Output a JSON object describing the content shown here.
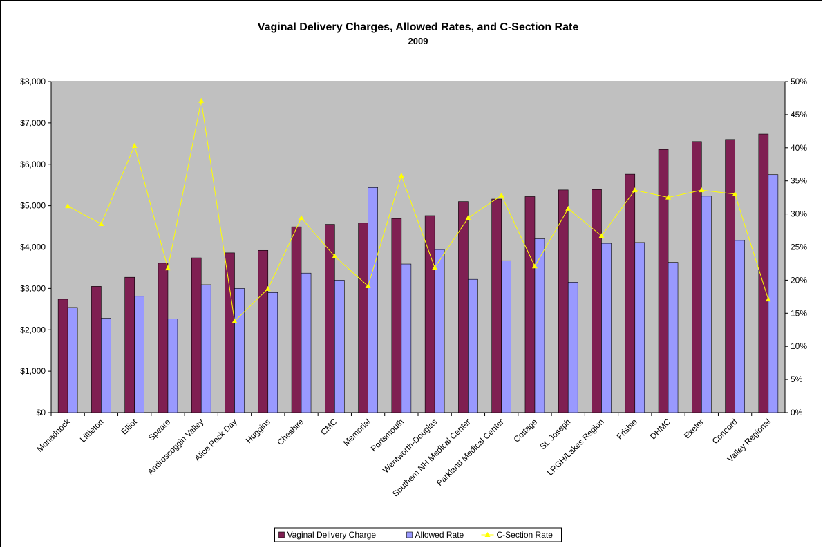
{
  "chart_data": {
    "type": "bar-line",
    "title": "Vaginal Delivery Charges, Allowed Rates, and C-Section Rate",
    "subtitle": "2009",
    "categories": [
      "Monadnock",
      "Littleton",
      "Elliot",
      "Speare",
      "Androscoggin Valley",
      "Alice Peck Day",
      "Huggins",
      "Cheshire",
      "CMC",
      "Memorial",
      "Portsmouth",
      "Wentworth-Douglas",
      "Southern NH Medical Center",
      "Parkland Medical Center",
      "Cottage",
      "St. Joseph",
      "LRGH/Lakes Region",
      "Frisbie",
      "DHMC",
      "Exeter",
      "Concord",
      "Valley Regional"
    ],
    "series": [
      {
        "name": "Vaginal Delivery Charge",
        "color": "#7f1f52",
        "type": "bar",
        "values": [
          2740,
          3050,
          3270,
          3610,
          3740,
          3860,
          3920,
          4490,
          4550,
          4580,
          4690,
          4760,
          5100,
          5160,
          5220,
          5380,
          5390,
          5760,
          6360,
          6550,
          6600,
          6730
        ]
      },
      {
        "name": "Allowed Rate",
        "color": "#9999ff",
        "type": "bar",
        "values": [
          2540,
          2280,
          2810,
          2260,
          3090,
          3000,
          2900,
          3370,
          3200,
          5440,
          3590,
          3940,
          3220,
          3670,
          4200,
          3150,
          4090,
          4110,
          3630,
          5230,
          4160,
          5750
        ]
      },
      {
        "name": "C-Section Rate",
        "color": "#ffff00",
        "type": "line",
        "axis": "y2",
        "values": [
          31.2,
          28.5,
          40.3,
          21.8,
          47.1,
          13.8,
          18.7,
          29.4,
          23.6,
          19.1,
          35.8,
          21.9,
          29.4,
          32.8,
          22.1,
          30.8,
          26.7,
          33.6,
          32.5,
          33.6,
          33.0,
          17.1
        ]
      }
    ],
    "ylim": [
      0,
      8000
    ],
    "yticks": [
      {
        "value": 0,
        "label": "$0"
      },
      {
        "value": 1000,
        "label": "$1,000"
      },
      {
        "value": 2000,
        "label": "$2,000"
      },
      {
        "value": 3000,
        "label": "$3,000"
      },
      {
        "value": 4000,
        "label": "$4,000"
      },
      {
        "value": 5000,
        "label": "$5,000"
      },
      {
        "value": 6000,
        "label": "$6,000"
      },
      {
        "value": 7000,
        "label": "$7,000"
      },
      {
        "value": 8000,
        "label": "$8,000"
      }
    ],
    "y2lim": [
      0,
      50
    ],
    "y2ticks": [
      {
        "value": 0,
        "label": "0%"
      },
      {
        "value": 5,
        "label": "5%"
      },
      {
        "value": 10,
        "label": "10%"
      },
      {
        "value": 15,
        "label": "15%"
      },
      {
        "value": 20,
        "label": "20%"
      },
      {
        "value": 25,
        "label": "25%"
      },
      {
        "value": 30,
        "label": "30%"
      },
      {
        "value": 35,
        "label": "35%"
      },
      {
        "value": 40,
        "label": "40%"
      },
      {
        "value": 45,
        "label": "45%"
      },
      {
        "value": 50,
        "label": "50%"
      }
    ],
    "legend": "bottom"
  }
}
